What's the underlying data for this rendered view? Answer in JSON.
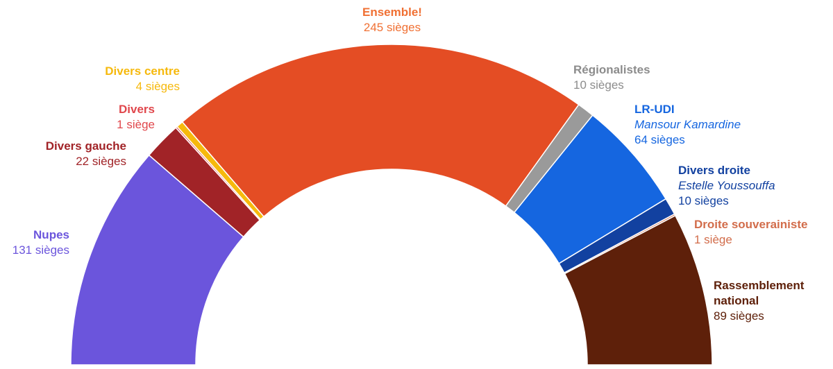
{
  "chart_data": {
    "type": "pie",
    "subtype": "half-donut",
    "unit_label_plural": "sièges",
    "series": [
      {
        "id": "nupes",
        "name": "Nupes",
        "seats": 131,
        "seats_label": "131 sièges",
        "color": "#6B55DC"
      },
      {
        "id": "divers-gauche",
        "name": "Divers gauche",
        "seats": 22,
        "seats_label": "22 sièges",
        "color": "#A12327"
      },
      {
        "id": "divers",
        "name": "Divers",
        "seats": 1,
        "seats_label": "1 siège",
        "color": "#E0474C"
      },
      {
        "id": "divers-centre",
        "name": "Divers centre",
        "seats": 4,
        "seats_label": "4 sièges",
        "color": "#F6B90D"
      },
      {
        "id": "ensemble",
        "name": "Ensemble!",
        "seats": 245,
        "seats_label": "245 sièges",
        "color": "#E44D24",
        "label_color": "#F07033"
      },
      {
        "id": "regionalistes",
        "name": "Régionalistes",
        "seats": 10,
        "seats_label": "10 sièges",
        "color": "#9A9A9A",
        "label_color": "#8C8C8C"
      },
      {
        "id": "lr-udi",
        "name": "LR-UDI",
        "person": "Mansour Kamardine",
        "seats": 64,
        "seats_label": "64 sièges",
        "color": "#1566E0"
      },
      {
        "id": "divers-droite",
        "name": "Divers droite",
        "person": "Estelle Youssouffa",
        "seats": 10,
        "seats_label": "10 sièges",
        "color": "#1241A0"
      },
      {
        "id": "droite-souverainiste",
        "name": "Droite souverainiste",
        "seats": 1,
        "seats_label": "1 siège",
        "color": "#D26D4B"
      },
      {
        "id": "rn",
        "name": "Rassemblement national",
        "seats": 89,
        "seats_label": "89 sièges",
        "color": "#5E200A"
      }
    ]
  }
}
